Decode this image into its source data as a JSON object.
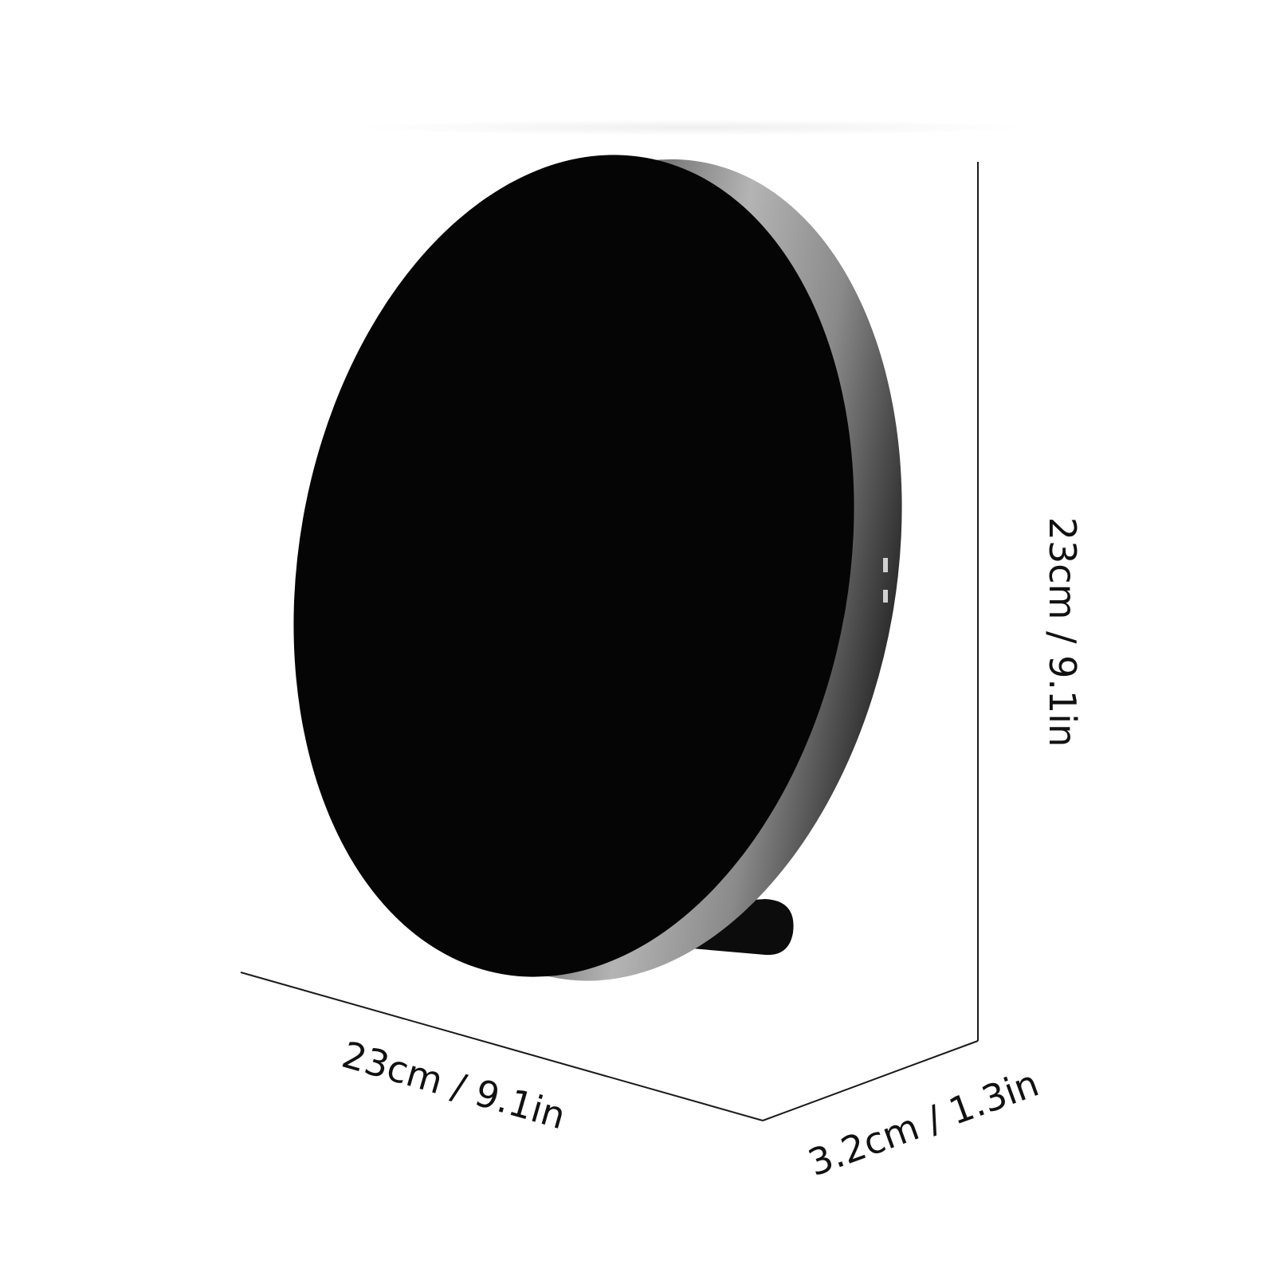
{
  "product": {
    "name": "round-disc-stand",
    "colors": {
      "face": "#050505",
      "rim_light": "#9a9a9a",
      "rim_dark": "#2a2a2a",
      "stand": "#0c0c0c",
      "line": "#1a1a1a"
    }
  },
  "dimensions": {
    "width_label": "23cm / 9.1in",
    "height_label": "23cm / 9.1in",
    "depth_label": "3.2cm / 1.3in"
  }
}
